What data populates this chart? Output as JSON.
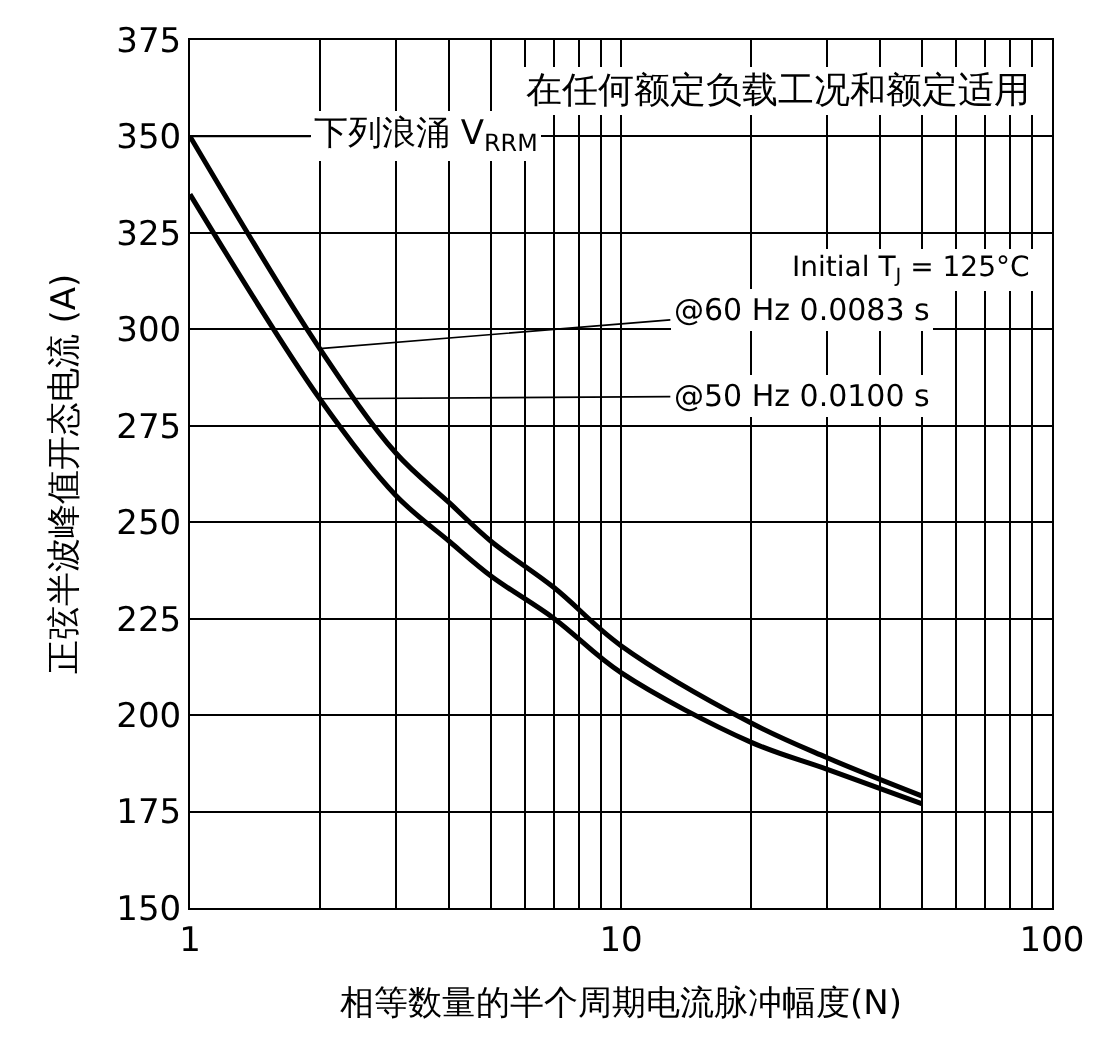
{
  "chart_data": {
    "type": "line",
    "xlabel": "相等数量的半个周期电流脉冲幅度(N)",
    "ylabel": "正弦半波峰值开态电流 (A)",
    "log": "x",
    "grid": true,
    "legend": false,
    "marker": "none",
    "line_style": "solid",
    "xlim": [
      1,
      100
    ],
    "xticks": [
      1,
      {
        "value": 2,
        "label": null
      },
      {
        "value": 3,
        "label": null
      },
      {
        "value": 4,
        "label": null
      },
      {
        "value": 5,
        "label": null
      },
      {
        "value": 6,
        "label": null
      },
      {
        "value": 7,
        "label": null
      },
      {
        "value": 8,
        "label": null
      },
      {
        "value": 9,
        "label": null
      },
      10,
      {
        "value": 20,
        "label": null
      },
      {
        "value": 30,
        "label": null
      },
      {
        "value": 40,
        "label": null
      },
      {
        "value": 50,
        "label": null
      },
      {
        "value": 60,
        "label": null
      },
      {
        "value": 70,
        "label": null
      },
      {
        "value": 80,
        "label": null
      },
      {
        "value": 90,
        "label": null
      },
      100
    ],
    "ylim": [
      150,
      375
    ],
    "yticks": [
      150,
      175,
      200,
      225,
      250,
      275,
      300,
      325,
      350,
      375
    ],
    "x": [
      1,
      2,
      3,
      4,
      5,
      7,
      10,
      20,
      30,
      50
    ],
    "series": [
      {
        "color": "#000000",
        "values": [
          350,
          295,
          268,
          255,
          245,
          233,
          218,
          198,
          189,
          179
        ]
      },
      {
        "color": "#000000",
        "values": [
          335,
          282,
          257,
          245,
          236,
          225,
          211,
          193,
          186,
          177
        ]
      }
    ],
    "annotations": [
      "在任何额定负载工况和额定适用",
      "下列浪涌 V$_{RRM}$",
      "Initial T$_{J}$ = 125°C",
      {
        "text": "@60 Hz 0.0083 s",
        "x": 2,
        "y": 295
      },
      {
        "text": "@50 Hz 0.0100 s",
        "x": 2,
        "y": 282
      }
    ]
  }
}
